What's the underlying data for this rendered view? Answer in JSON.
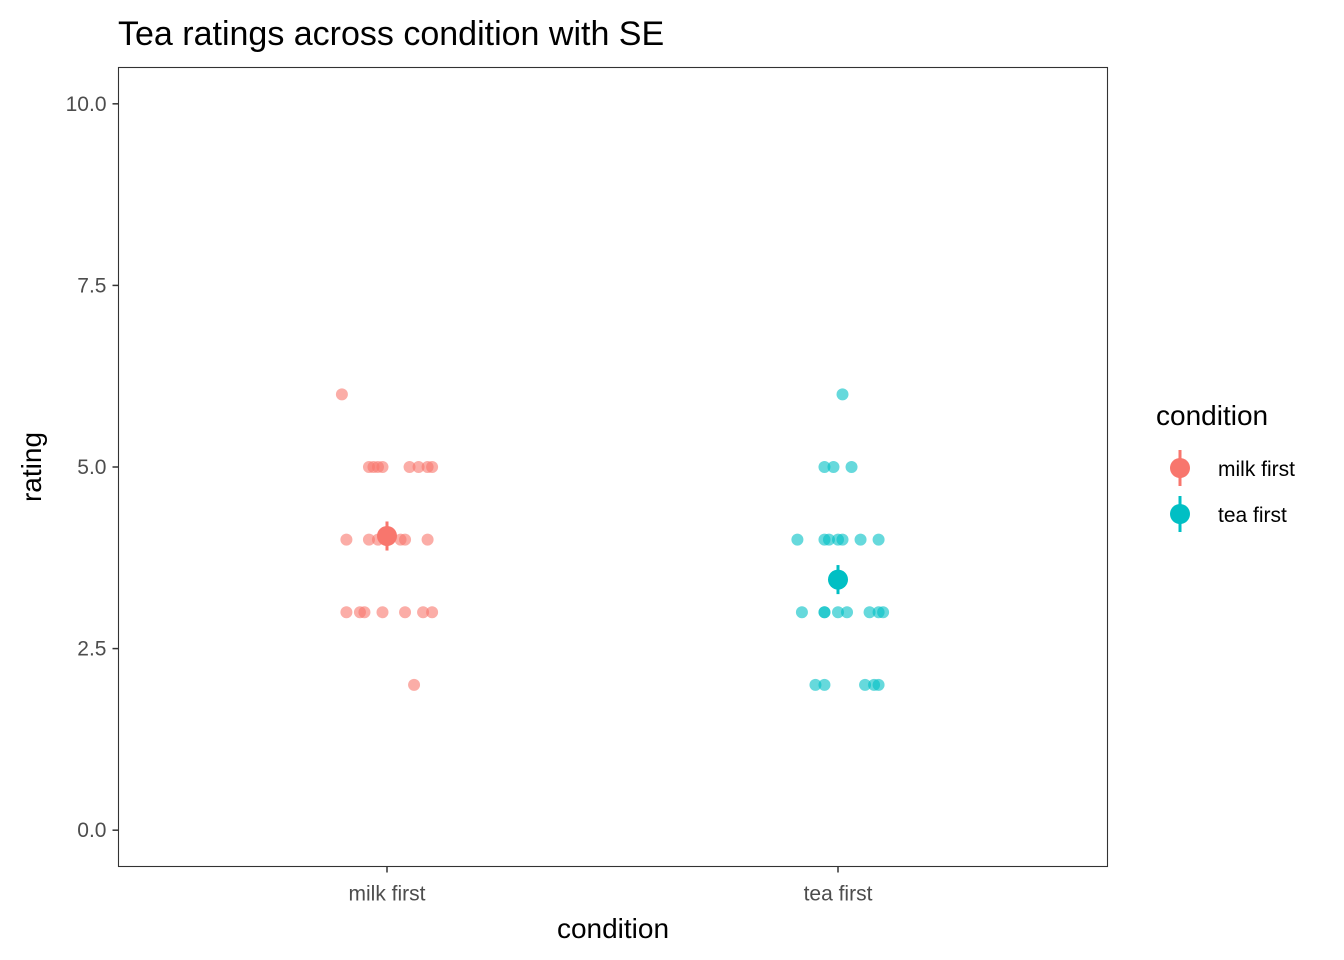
{
  "chart_data": {
    "type": "scatter",
    "title": "Tea ratings across condition with SE",
    "xlabel": "condition",
    "ylabel": "rating",
    "categories": [
      "milk first",
      "tea first"
    ],
    "ylim": [
      -0.5,
      10.5
    ],
    "yticks": [
      0.0,
      2.5,
      5.0,
      7.5,
      10.0
    ],
    "ytick_labels": [
      "0.0",
      "2.5",
      "5.0",
      "7.5",
      "10.0"
    ],
    "grid": false,
    "legend": {
      "title": "condition",
      "position": "right",
      "entries": [
        "milk first",
        "tea first"
      ]
    },
    "series": [
      {
        "name": "milk first",
        "color": "#F8766D",
        "mean": 4.05,
        "se": 0.2,
        "points": [
          {
            "x": -0.1,
            "y": 6
          },
          {
            "x": -0.04,
            "y": 5
          },
          {
            "x": -0.03,
            "y": 5
          },
          {
            "x": -0.02,
            "y": 5
          },
          {
            "x": -0.01,
            "y": 5
          },
          {
            "x": 0.05,
            "y": 5
          },
          {
            "x": 0.07,
            "y": 5
          },
          {
            "x": 0.09,
            "y": 5
          },
          {
            "x": 0.1,
            "y": 5
          },
          {
            "x": -0.09,
            "y": 4
          },
          {
            "x": -0.04,
            "y": 4
          },
          {
            "x": -0.02,
            "y": 4
          },
          {
            "x": 0.0,
            "y": 4
          },
          {
            "x": 0.03,
            "y": 4
          },
          {
            "x": 0.04,
            "y": 4
          },
          {
            "x": 0.09,
            "y": 4
          },
          {
            "x": -0.09,
            "y": 3
          },
          {
            "x": -0.06,
            "y": 3
          },
          {
            "x": -0.05,
            "y": 3
          },
          {
            "x": -0.01,
            "y": 3
          },
          {
            "x": 0.04,
            "y": 3
          },
          {
            "x": 0.08,
            "y": 3
          },
          {
            "x": 0.1,
            "y": 3
          },
          {
            "x": 0.06,
            "y": 2
          }
        ]
      },
      {
        "name": "tea first",
        "color": "#00BFC4",
        "mean": 3.45,
        "se": 0.2,
        "points": [
          {
            "x": 0.01,
            "y": 6
          },
          {
            "x": -0.03,
            "y": 5
          },
          {
            "x": -0.01,
            "y": 5
          },
          {
            "x": 0.03,
            "y": 5
          },
          {
            "x": -0.09,
            "y": 4
          },
          {
            "x": -0.03,
            "y": 4
          },
          {
            "x": -0.02,
            "y": 4
          },
          {
            "x": 0.0,
            "y": 4
          },
          {
            "x": 0.01,
            "y": 4
          },
          {
            "x": 0.05,
            "y": 4
          },
          {
            "x": 0.09,
            "y": 4
          },
          {
            "x": -0.08,
            "y": 3
          },
          {
            "x": -0.03,
            "y": 3
          },
          {
            "x": -0.03,
            "y": 3
          },
          {
            "x": 0.0,
            "y": 3
          },
          {
            "x": 0.02,
            "y": 3
          },
          {
            "x": 0.07,
            "y": 3
          },
          {
            "x": 0.09,
            "y": 3
          },
          {
            "x": 0.1,
            "y": 3
          },
          {
            "x": -0.05,
            "y": 2
          },
          {
            "x": -0.03,
            "y": 2
          },
          {
            "x": 0.06,
            "y": 2
          },
          {
            "x": 0.08,
            "y": 2
          },
          {
            "x": 0.09,
            "y": 2
          }
        ]
      }
    ]
  }
}
